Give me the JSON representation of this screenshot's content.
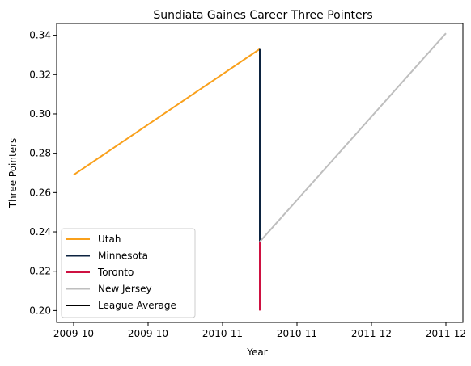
{
  "chart_data": {
    "type": "line",
    "title": "Sundiata Gaines Career Three Pointers",
    "xlabel": "Year",
    "ylabel": "Three Pointers",
    "xlim": [
      0,
      5.1
    ],
    "ylim": [
      0.194,
      0.346
    ],
    "x_ticks": [
      {
        "pos": 0,
        "label": "2009-10"
      },
      {
        "pos": 1,
        "label": "2009-10"
      },
      {
        "pos": 2,
        "label": "2010-11"
      },
      {
        "pos": 3,
        "label": "2010-11"
      },
      {
        "pos": 4,
        "label": "2011-12"
      },
      {
        "pos": 5,
        "label": "2011-12"
      }
    ],
    "y_ticks": [
      0.2,
      0.22,
      0.24,
      0.26,
      0.28,
      0.3,
      0.32,
      0.34
    ],
    "y_tick_labels": [
      "0.20",
      "0.22",
      "0.24",
      "0.26",
      "0.28",
      "0.30",
      "0.32",
      "0.34"
    ],
    "grid": false,
    "legend_position": "lower-left",
    "series": [
      {
        "name": "Utah",
        "color": "#F9A01B",
        "points": [
          [
            0,
            0.269
          ],
          [
            2.5,
            0.333
          ]
        ]
      },
      {
        "name": "Minnesota",
        "color": "#0C2340",
        "points": [
          [
            2.5,
            0.333
          ],
          [
            2.5,
            0.235
          ]
        ]
      },
      {
        "name": "Toronto",
        "color": "#CE1141",
        "points": [
          [
            2.5,
            0.235
          ],
          [
            2.5,
            0.2
          ]
        ]
      },
      {
        "name": "New Jersey",
        "color": "#BEBEBE",
        "points": [
          [
            2.5,
            0.235
          ],
          [
            5,
            0.341
          ]
        ]
      },
      {
        "name": "League Average",
        "color": "#000000",
        "points": []
      }
    ]
  }
}
